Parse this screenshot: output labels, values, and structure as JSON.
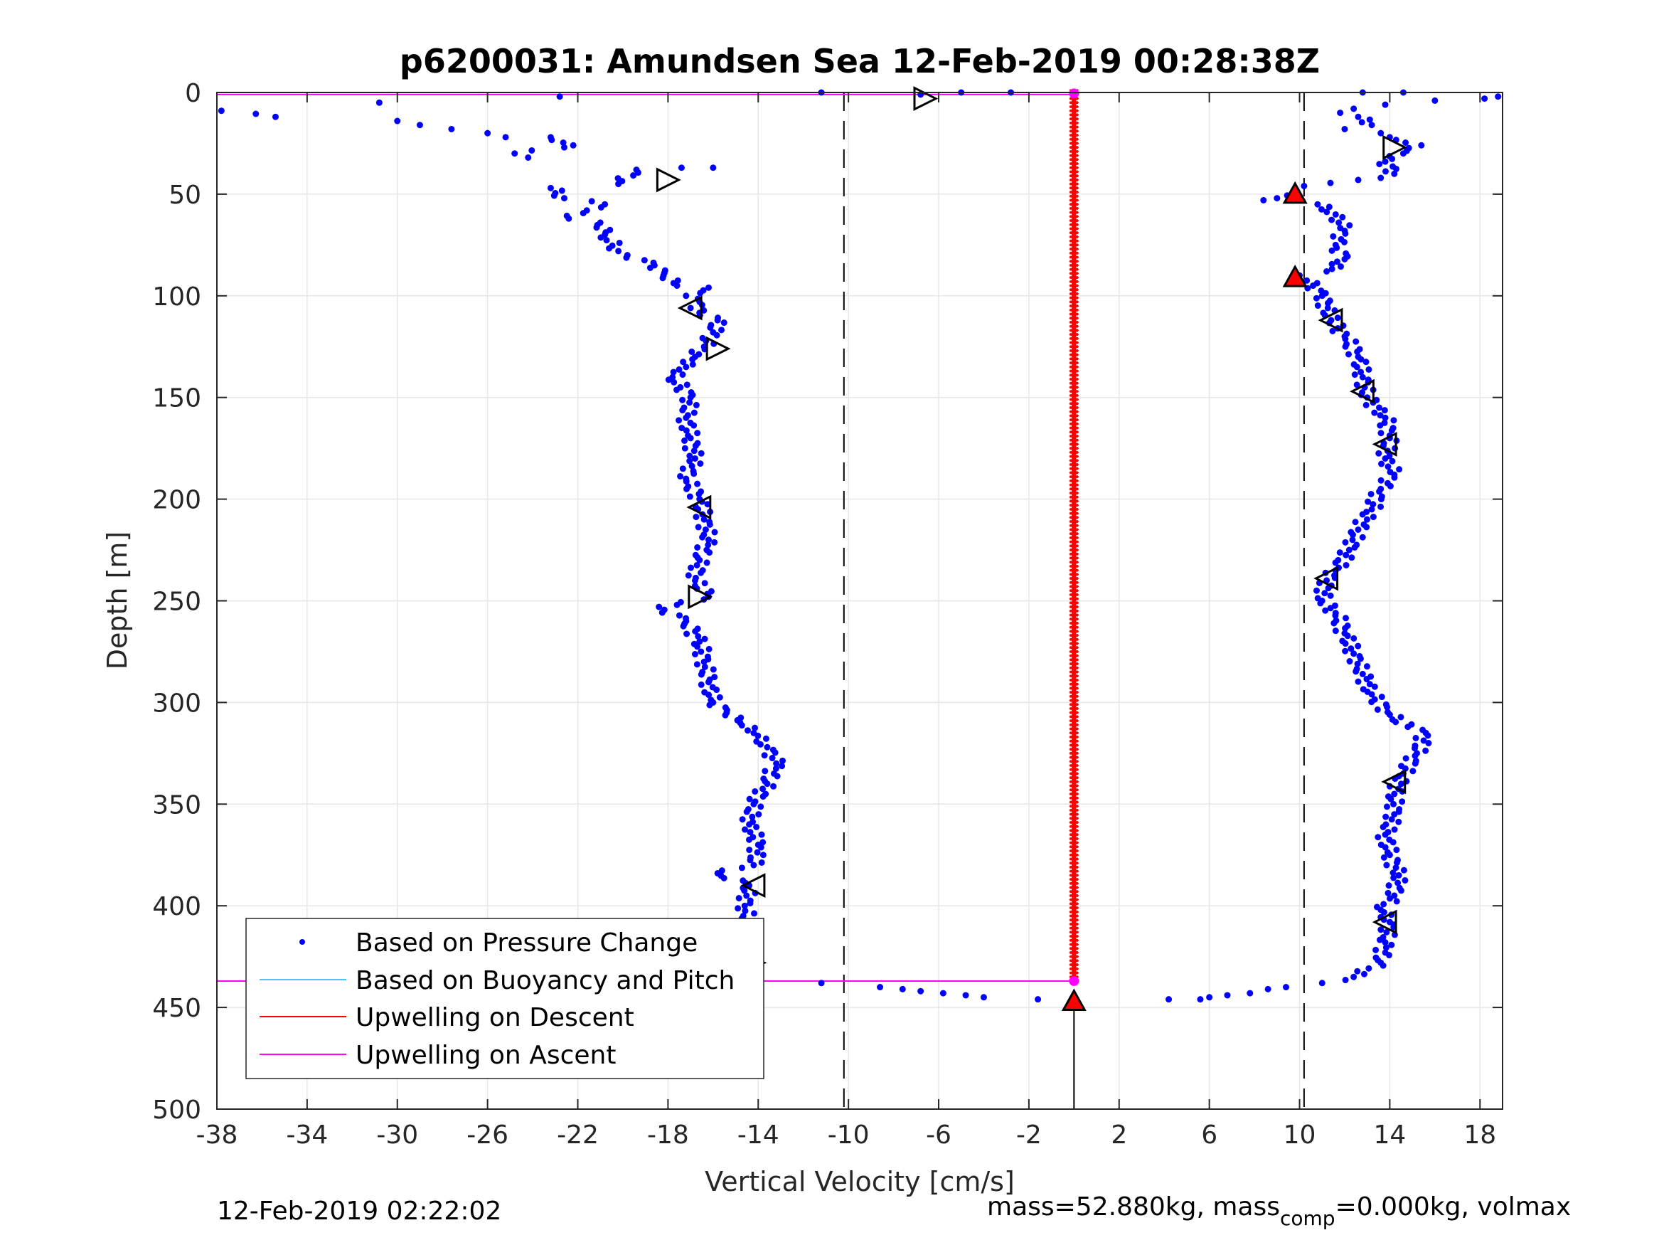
{
  "chart_data": {
    "type": "scatter",
    "title": "p6200031: Amundsen Sea 12-Feb-2019 00:28:38Z",
    "xlabel": "Vertical Velocity [cm/s]",
    "ylabel": "Depth [m]",
    "xlim": [
      -38,
      19
    ],
    "ylim": [
      0,
      500
    ],
    "y_reversed": true,
    "grid": true,
    "legend_position": "bottom-left",
    "x_ticks": [
      "-38",
      "-34",
      "-30",
      "-26",
      "-22",
      "-18",
      "-14",
      "-10",
      "-6",
      "-2",
      "2",
      "6",
      "10",
      "14",
      "18"
    ],
    "y_ticks": [
      "0",
      "50",
      "100",
      "150",
      "200",
      "250",
      "300",
      "350",
      "400",
      "450",
      "500"
    ],
    "reference_lines": {
      "dashed_x": [
        -10.2,
        10.2
      ]
    },
    "colors": {
      "pressure": "#0000ff",
      "buoyancy": "#4fc3f7",
      "descent": "#ff0000",
      "ascent": "#ff00ff"
    },
    "series": [
      {
        "name": "Based on Pressure Change",
        "style": "dots",
        "descent_profile": [
          [
            -37.8,
            9
          ],
          [
            -35.4,
            12
          ],
          [
            -30.8,
            5
          ],
          [
            -30,
            14
          ],
          [
            -29,
            16
          ],
          [
            -27.6,
            18
          ],
          [
            -26,
            20
          ],
          [
            -25.2,
            22
          ],
          [
            -24.8,
            30
          ],
          [
            -24.2,
            32
          ],
          [
            -23.2,
            22
          ],
          [
            -22.6,
            27
          ],
          [
            -22.2,
            26
          ],
          [
            -23.2,
            47
          ],
          [
            -22.6,
            52
          ],
          [
            -22.4,
            62
          ],
          [
            -21.6,
            58
          ],
          [
            -21,
            64
          ],
          [
            -20.8,
            70
          ],
          [
            -20.2,
            78
          ],
          [
            -19.8,
            80
          ],
          [
            -20.8,
            55
          ],
          [
            -20.2,
            45
          ],
          [
            -19.4,
            38
          ],
          [
            -18.6,
            85
          ],
          [
            -18.2,
            90
          ],
          [
            -17.6,
            95
          ],
          [
            -17.2,
            100
          ],
          [
            -16.2,
            96
          ],
          [
            -16.6,
            103
          ],
          [
            -17,
            106
          ],
          [
            -15.8,
            112
          ],
          [
            -16,
            118
          ],
          [
            -16.4,
            125
          ],
          [
            -16.8,
            130
          ],
          [
            -17.2,
            135
          ],
          [
            -17.8,
            140
          ],
          [
            -17,
            150
          ],
          [
            -17.2,
            160
          ],
          [
            -17,
            170
          ],
          [
            -16.8,
            180
          ],
          [
            -17.2,
            190
          ],
          [
            -16.6,
            200
          ],
          [
            -16.4,
            210
          ],
          [
            -16.2,
            220
          ],
          [
            -16.6,
            230
          ],
          [
            -16.8,
            240
          ],
          [
            -16.2,
            248
          ],
          [
            -17.6,
            252
          ],
          [
            -18.4,
            253
          ],
          [
            -17.2,
            260
          ],
          [
            -16.6,
            270
          ],
          [
            -16.4,
            280
          ],
          [
            -16.2,
            290
          ],
          [
            -16,
            300
          ],
          [
            -15.4,
            305
          ],
          [
            -14.8,
            310
          ],
          [
            -14.2,
            315
          ],
          [
            -13.6,
            322
          ],
          [
            -13.2,
            330
          ],
          [
            -13.6,
            340
          ],
          [
            -14.2,
            350
          ],
          [
            -14.4,
            360
          ],
          [
            -14,
            370
          ],
          [
            -14.2,
            380
          ],
          [
            -15.8,
            384
          ],
          [
            -14.4,
            390
          ],
          [
            -14.6,
            400
          ],
          [
            -14.4,
            410
          ],
          [
            -14.2,
            420
          ],
          [
            -14.6,
            430
          ],
          [
            -15.2,
            432
          ],
          [
            -15.8,
            436
          ],
          [
            -11.2,
            438
          ],
          [
            -8.6,
            440
          ],
          [
            -7.6,
            441
          ],
          [
            -6.8,
            442
          ],
          [
            -5.8,
            443
          ],
          [
            -4.8,
            444
          ],
          [
            -4,
            445
          ],
          [
            -1.6,
            446
          ],
          [
            -11.2,
            0
          ],
          [
            -6.8,
            1
          ],
          [
            -5,
            0
          ],
          [
            -2.8,
            0
          ],
          [
            -22.8,
            2
          ],
          [
            -17.4,
            37
          ],
          [
            -16,
            37
          ]
        ],
        "ascent_profile": [
          [
            18.8,
            2
          ],
          [
            18.2,
            3
          ],
          [
            16,
            4
          ],
          [
            14.6,
            0
          ],
          [
            12.8,
            0
          ],
          [
            13.8,
            6
          ],
          [
            12.4,
            8
          ],
          [
            11.8,
            10
          ],
          [
            12.6,
            12
          ],
          [
            13.2,
            16
          ],
          [
            12,
            18
          ],
          [
            13.6,
            20
          ],
          [
            14,
            22
          ],
          [
            15.4,
            26
          ],
          [
            14.6,
            30
          ],
          [
            13.8,
            34
          ],
          [
            14.2,
            40
          ],
          [
            13.6,
            42
          ],
          [
            12.6,
            43
          ],
          [
            10.2,
            46
          ],
          [
            9.8,
            48
          ],
          [
            9,
            52
          ],
          [
            8.4,
            53
          ],
          [
            10.8,
            55
          ],
          [
            11.6,
            60
          ],
          [
            12,
            68
          ],
          [
            11.6,
            75
          ],
          [
            12,
            82
          ],
          [
            11.2,
            88
          ],
          [
            10,
            90
          ],
          [
            10.6,
            95
          ],
          [
            11,
            100
          ],
          [
            11.4,
            112
          ],
          [
            12,
            120
          ],
          [
            12.6,
            130
          ],
          [
            12.8,
            140
          ],
          [
            13,
            150
          ],
          [
            13.8,
            160
          ],
          [
            14,
            170
          ],
          [
            13.8,
            180
          ],
          [
            14.2,
            188
          ],
          [
            13.6,
            195
          ],
          [
            13.2,
            205
          ],
          [
            12.6,
            215
          ],
          [
            12.2,
            225
          ],
          [
            11.6,
            235
          ],
          [
            11.2,
            240
          ],
          [
            11,
            250
          ],
          [
            11.6,
            256
          ],
          [
            12,
            266
          ],
          [
            12.4,
            276
          ],
          [
            12.8,
            286
          ],
          [
            13.2,
            296
          ],
          [
            14,
            306
          ],
          [
            14.8,
            312
          ],
          [
            15.6,
            315
          ],
          [
            15.2,
            325
          ],
          [
            14.6,
            335
          ],
          [
            14.2,
            345
          ],
          [
            14.2,
            355
          ],
          [
            13.8,
            365
          ],
          [
            14,
            375
          ],
          [
            14.4,
            385
          ],
          [
            14.2,
            395
          ],
          [
            13.6,
            402
          ],
          [
            14,
            408
          ],
          [
            13.8,
            418
          ],
          [
            13.6,
            428
          ],
          [
            12.4,
            435
          ],
          [
            11,
            438
          ],
          [
            9.4,
            440
          ],
          [
            8.6,
            441
          ],
          [
            7.8,
            443
          ],
          [
            6.8,
            444
          ],
          [
            6,
            445
          ],
          [
            4.2,
            446
          ],
          [
            5.6,
            446
          ]
        ]
      },
      {
        "name": "Based on Buoyancy and Pitch",
        "style": "line",
        "values": []
      },
      {
        "name": "Upwelling on Descent",
        "style": "line",
        "x_constant": 0,
        "depth_range": [
          0,
          437
        ]
      },
      {
        "name": "Upwelling on Ascent",
        "style": "line",
        "horizontal_at_depth": [
          1,
          437
        ]
      }
    ],
    "markers": {
      "open_right": [
        [
          -6.6,
          3
        ],
        [
          -18,
          43
        ],
        [
          -15.8,
          126
        ],
        [
          -16.6,
          248
        ],
        [
          -14.2,
          428
        ],
        [
          14.2,
          27
        ]
      ],
      "open_left": [
        [
          -17,
          106
        ],
        [
          -16.6,
          204
        ],
        [
          -14.2,
          390
        ],
        [
          11.4,
          112
        ],
        [
          12.8,
          147
        ],
        [
          13.8,
          173
        ],
        [
          11.2,
          239
        ],
        [
          14.2,
          339
        ],
        [
          13.8,
          408
        ]
      ],
      "filled_red": [
        [
          9.8,
          50
        ],
        [
          9.8,
          91
        ],
        [
          -15.6,
          437
        ]
      ],
      "filled_black_bottom": [
        [
          0,
          447
        ]
      ]
    },
    "sensor_line": {
      "x": 0,
      "depth_range": [
        447,
        500
      ]
    }
  },
  "footer": {
    "timestamp": "12-Feb-2019 02:22:02",
    "mass_prefix": "mass=52.880kg, mass",
    "mass_sub": "comp",
    "mass_suffix": "=0.000kg, volmax"
  }
}
